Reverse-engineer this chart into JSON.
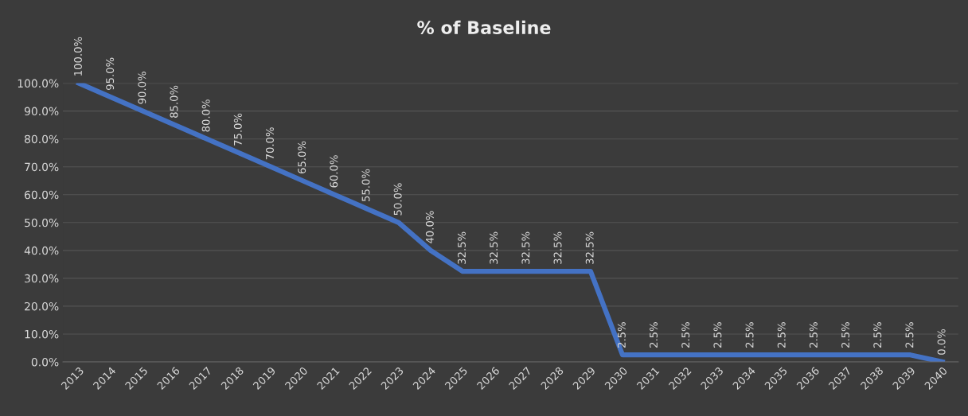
{
  "chart_data": {
    "type": "line",
    "title": "% of Baseline",
    "categories": [
      "2013",
      "2014",
      "2015",
      "2016",
      "2017",
      "2018",
      "2019",
      "2020",
      "2021",
      "2022",
      "2023",
      "2024",
      "2025",
      "2026",
      "2027",
      "2028",
      "2029",
      "2030",
      "2031",
      "2032",
      "2033",
      "2034",
      "2035",
      "2036",
      "2037",
      "2038",
      "2039",
      "2040"
    ],
    "series": [
      {
        "color": "#4472c4",
        "values": [
          100,
          95,
          90,
          85,
          80,
          75,
          70,
          65,
          60,
          55,
          50,
          40,
          32.5,
          32.5,
          32.5,
          32.5,
          32.5,
          2.5,
          2.5,
          2.5,
          2.5,
          2.5,
          2.5,
          2.5,
          2.5,
          2.5,
          2.5,
          0
        ],
        "value_labels": [
          "100.0%",
          "95.0%",
          "90.0%",
          "85.0%",
          "80.0%",
          "75.0%",
          "70.0%",
          "65.0%",
          "60.0%",
          "55.0%",
          "50.0%",
          "40.0%",
          "32.5%",
          "32.5%",
          "32.5%",
          "32.5%",
          "32.5%",
          "2.5%",
          "2.5%",
          "2.5%",
          "2.5%",
          "2.5%",
          "2.5%",
          "2.5%",
          "2.5%",
          "2.5%",
          "2.5%",
          "0.0%"
        ]
      }
    ],
    "ylim": [
      0,
      100
    ],
    "yticks": [
      {
        "value": 0,
        "label": "0.0%"
      },
      {
        "value": 10,
        "label": "10.0%"
      },
      {
        "value": 20,
        "label": "20.0%"
      },
      {
        "value": 30,
        "label": "30.0%"
      },
      {
        "value": 40,
        "label": "40.0%"
      },
      {
        "value": 50,
        "label": "50.0%"
      },
      {
        "value": 60,
        "label": "60.0%"
      },
      {
        "value": 70,
        "label": "70.0%"
      },
      {
        "value": 80,
        "label": "80.0%"
      },
      {
        "value": 90,
        "label": "90.0%"
      },
      {
        "value": 100,
        "label": "100.0%"
      }
    ],
    "grid": "y",
    "legend": false,
    "marker": "none",
    "line_style": "solid"
  }
}
